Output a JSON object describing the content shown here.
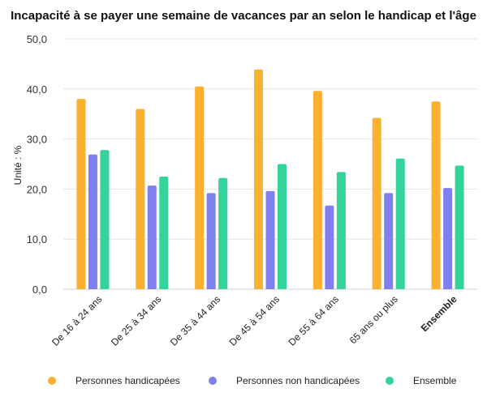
{
  "chart_data": {
    "type": "bar",
    "title": "Incapacité à se payer une semaine de vacances par an selon le handicap et l'âge",
    "ylabel": "Unité : %",
    "xlabel": "",
    "ylim": [
      0,
      50
    ],
    "yticks": [
      "0,0",
      "10,0",
      "20,0",
      "30,0",
      "40,0",
      "50,0"
    ],
    "ytick_values": [
      0,
      10,
      20,
      30,
      40,
      50
    ],
    "grid": true,
    "legend_position": "bottom",
    "categories": [
      "De 16 à 24 ans",
      "De 25 à 34 ans",
      "De 35 à 44 ans",
      "De 45 à 54 ans",
      "De 55 à 64 ans",
      "65 ans ou plus",
      "Ensemble"
    ],
    "bold_categories": [
      "Ensemble"
    ],
    "series": [
      {
        "name": "Personnes handicapées",
        "color": "#FBB12F",
        "values": [
          38.0,
          36.0,
          40.5,
          43.9,
          39.6,
          34.2,
          37.5
        ]
      },
      {
        "name": "Personnes non handicapées",
        "color": "#7F7FF0",
        "values": [
          26.9,
          20.7,
          19.2,
          19.6,
          16.7,
          19.2,
          20.2
        ]
      },
      {
        "name": "Ensemble",
        "color": "#34D399",
        "values": [
          27.8,
          22.5,
          22.2,
          25.0,
          23.4,
          26.1,
          24.7
        ]
      }
    ]
  }
}
